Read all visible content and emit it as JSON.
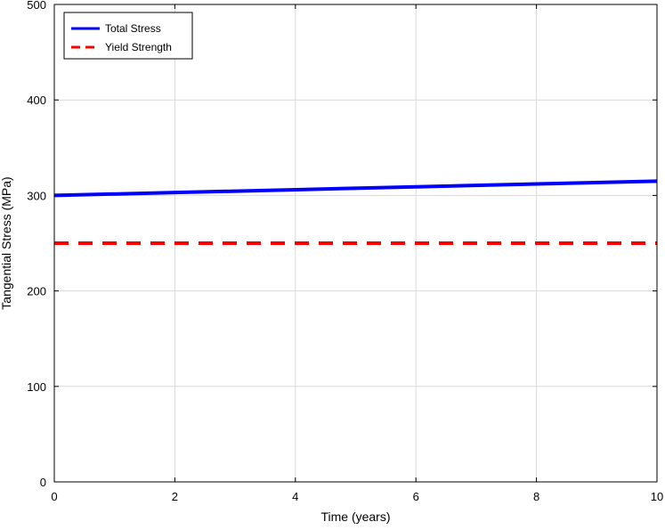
{
  "chart_data": {
    "type": "line",
    "xlabel": "Time (years)",
    "ylabel": "Tangential Stress (MPa)",
    "xlim": [
      0,
      10
    ],
    "ylim": [
      0,
      500
    ],
    "xticks": [
      0,
      2,
      4,
      6,
      8,
      10
    ],
    "yticks": [
      0,
      100,
      200,
      300,
      400,
      500
    ],
    "grid": true,
    "legend_position": "top-left",
    "series": [
      {
        "name": "Total Stress",
        "x": [
          0,
          2,
          4,
          6,
          8,
          10
        ],
        "y": [
          300,
          303,
          306,
          309,
          312,
          315
        ],
        "color": "#0000ff",
        "style": "solid"
      },
      {
        "name": "Yield Strength",
        "x": [
          0,
          10
        ],
        "y": [
          250,
          250
        ],
        "color": "#ff0000",
        "style": "dashed"
      }
    ]
  }
}
